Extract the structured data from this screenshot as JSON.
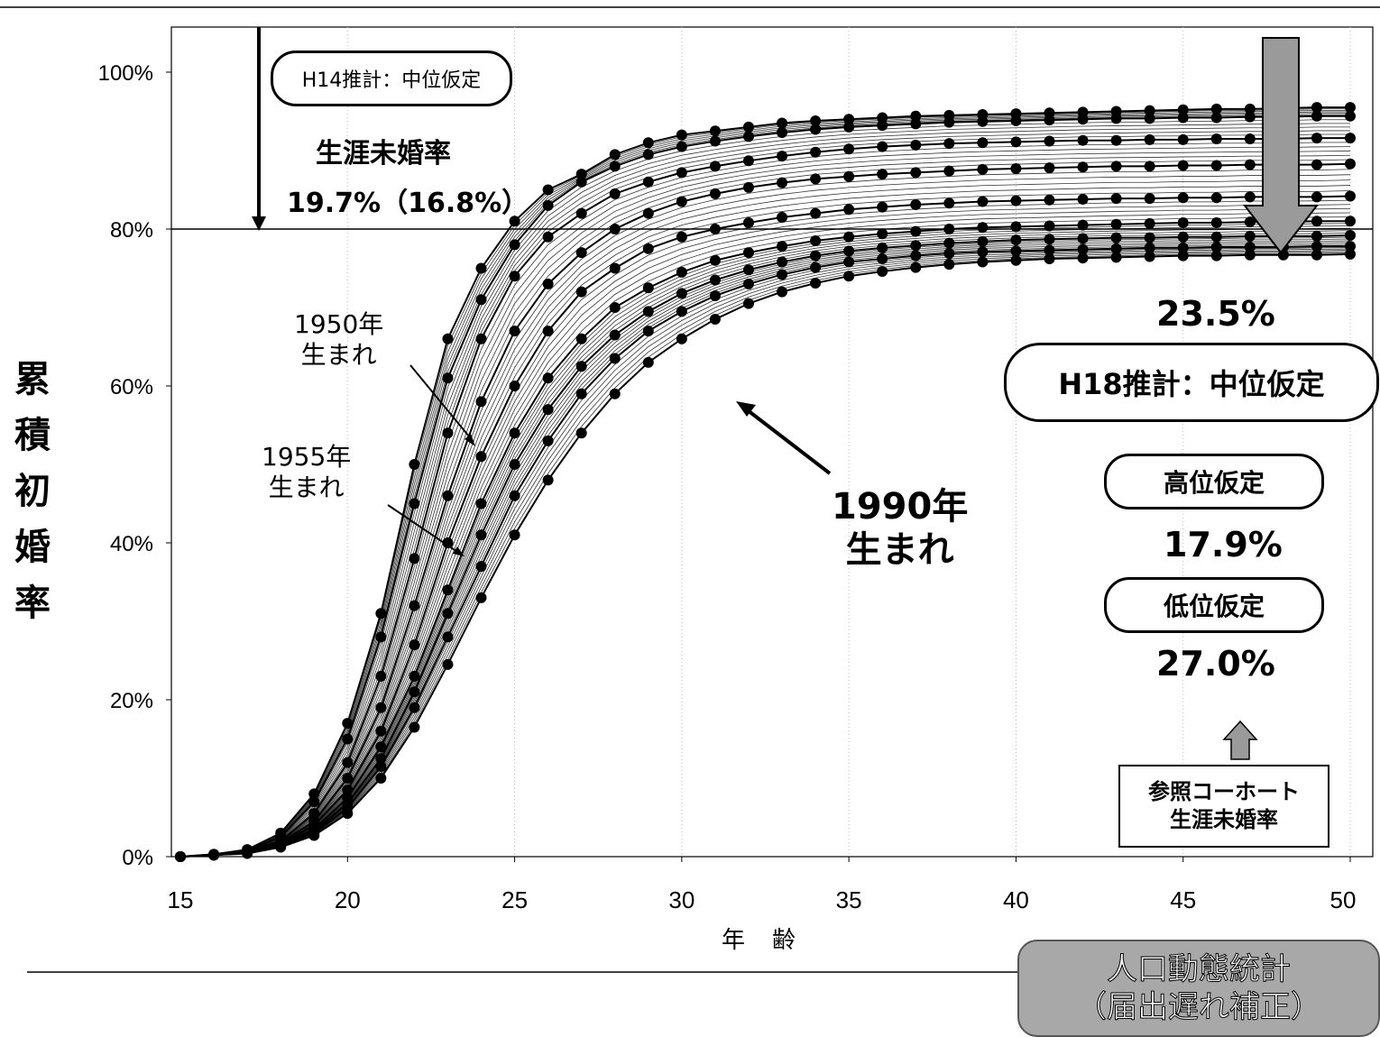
{
  "chart_data": {
    "type": "line",
    "xlabel": "年　齢",
    "ylabel": "累積初婚率",
    "xlim": [
      15,
      50
    ],
    "ylim": [
      0,
      1.0
    ],
    "x_ticks": [
      15,
      20,
      25,
      30,
      35,
      40,
      45,
      50
    ],
    "x_tick_labels": [
      "15",
      "20",
      "25",
      "30",
      "35",
      "40",
      "45",
      "50"
    ],
    "y_ticks": [
      0,
      0.2,
      0.4,
      0.6,
      0.8,
      1.0
    ],
    "y_tick_labels": [
      "0%",
      "20%",
      "40%",
      "60%",
      "80%",
      "100%"
    ],
    "reference_line_y": 0.8,
    "x": [
      15,
      16,
      17,
      18,
      19,
      20,
      21,
      22,
      23,
      24,
      25,
      26,
      27,
      28,
      29,
      30,
      31,
      32,
      33,
      34,
      35,
      36,
      37,
      38,
      39,
      40,
      41,
      42,
      43,
      44,
      45,
      46,
      47,
      48,
      49,
      50
    ],
    "series": [
      {
        "values": [
          0,
          0.003,
          0.009,
          0.03,
          0.08,
          0.17,
          0.31,
          0.5,
          0.66,
          0.75,
          0.81,
          0.85,
          0.87,
          0.895,
          0.91,
          0.92,
          0.925,
          0.93,
          0.935,
          0.938,
          0.94,
          0.942,
          0.944,
          0.945,
          0.946,
          0.947,
          0.948,
          0.949,
          0.95,
          0.951,
          0.952,
          0.953,
          0.953,
          0.954,
          0.955,
          0.955
        ]
      },
      {
        "values": [
          0,
          0.003,
          0.008,
          0.025,
          0.07,
          0.15,
          0.28,
          0.45,
          0.61,
          0.71,
          0.78,
          0.83,
          0.86,
          0.88,
          0.895,
          0.905,
          0.912,
          0.918,
          0.923,
          0.927,
          0.93,
          0.932,
          0.934,
          0.936,
          0.937,
          0.938,
          0.939,
          0.94,
          0.941,
          0.941,
          0.942,
          0.942,
          0.943,
          0.943,
          0.944,
          0.944
        ]
      },
      {
        "values": [
          0,
          0.002,
          0.007,
          0.02,
          0.055,
          0.12,
          0.23,
          0.38,
          0.54,
          0.66,
          0.74,
          0.79,
          0.82,
          0.845,
          0.86,
          0.872,
          0.88,
          0.887,
          0.893,
          0.898,
          0.902,
          0.905,
          0.907,
          0.909,
          0.91,
          0.911,
          0.912,
          0.913,
          0.913,
          0.914,
          0.914,
          0.915,
          0.915,
          0.915,
          0.916,
          0.916
        ]
      },
      {
        "values": [
          0,
          0.002,
          0.006,
          0.018,
          0.045,
          0.1,
          0.19,
          0.32,
          0.46,
          0.58,
          0.67,
          0.73,
          0.77,
          0.8,
          0.82,
          0.835,
          0.845,
          0.853,
          0.859,
          0.864,
          0.867,
          0.87,
          0.872,
          0.874,
          0.876,
          0.877,
          0.878,
          0.879,
          0.88,
          0.88,
          0.881,
          0.881,
          0.882,
          0.882,
          0.882,
          0.883
        ]
      },
      {
        "values": [
          0,
          0.002,
          0.006,
          0.016,
          0.04,
          0.085,
          0.16,
          0.27,
          0.4,
          0.51,
          0.6,
          0.67,
          0.72,
          0.75,
          0.775,
          0.79,
          0.8,
          0.808,
          0.815,
          0.82,
          0.825,
          0.828,
          0.831,
          0.833,
          0.835,
          0.836,
          0.837,
          0.838,
          0.839,
          0.839,
          0.84,
          0.84,
          0.841,
          0.841,
          0.841,
          0.842
        ]
      },
      {
        "values": [
          0,
          0.002,
          0.005,
          0.015,
          0.035,
          0.075,
          0.14,
          0.23,
          0.34,
          0.45,
          0.54,
          0.61,
          0.66,
          0.7,
          0.725,
          0.745,
          0.76,
          0.77,
          0.778,
          0.785,
          0.79,
          0.794,
          0.797,
          0.8,
          0.802,
          0.803,
          0.804,
          0.805,
          0.806,
          0.807,
          0.808,
          0.808,
          0.809,
          0.809,
          0.81,
          0.81
        ]
      },
      {
        "values": [
          0,
          0.002,
          0.005,
          0.014,
          0.032,
          0.068,
          0.125,
          0.21,
          0.31,
          0.41,
          0.5,
          0.57,
          0.625,
          0.665,
          0.695,
          0.718,
          0.735,
          0.748,
          0.758,
          0.766,
          0.772,
          0.776,
          0.779,
          0.782,
          0.784,
          0.786,
          0.787,
          0.788,
          0.789,
          0.789,
          0.79,
          0.79,
          0.791,
          0.791,
          0.791,
          0.792
        ]
      },
      {
        "values": [
          0,
          0.002,
          0.005,
          0.013,
          0.03,
          0.062,
          0.115,
          0.19,
          0.28,
          0.37,
          0.46,
          0.53,
          0.59,
          0.635,
          0.67,
          0.695,
          0.715,
          0.73,
          0.742,
          0.751,
          0.758,
          0.762,
          0.766,
          0.769,
          0.771,
          0.772,
          0.773,
          0.774,
          0.775,
          0.776,
          0.776,
          0.777,
          0.777,
          0.777,
          0.778,
          0.778
        ]
      },
      {
        "values": [
          0,
          0.002,
          0.004,
          0.012,
          0.027,
          0.055,
          0.1,
          0.165,
          0.245,
          0.33,
          0.41,
          0.48,
          0.54,
          0.59,
          0.63,
          0.66,
          0.685,
          0.705,
          0.72,
          0.731,
          0.74,
          0.746,
          0.751,
          0.755,
          0.758,
          0.76,
          0.762,
          0.763,
          0.764,
          0.765,
          0.766,
          0.766,
          0.767,
          0.767,
          0.767,
          0.768
        ]
      }
    ]
  },
  "annotations": {
    "h14_box": "H14推計：中位仮定",
    "h14_title": "生涯未婚率",
    "h14_value": "19.7%（16.8%）",
    "label_1950": "1950年\n生まれ",
    "label_1955": "1955年\n生まれ",
    "label_1990": "1990年\n生まれ",
    "h18_value": "23.5%",
    "h18_box": "H18推計：中位仮定",
    "high_box": "高位仮定",
    "high_value": "17.9%",
    "low_box": "低位仮定",
    "low_value": "27.0%",
    "ref_box": "参照コーホート\n生涯未婚率",
    "source_box": "人口動態統計\n（届出遅れ補正）"
  },
  "colors": {
    "line": "#000000",
    "fill_gray": "#9a9a9a",
    "band_gray": "#d0d0d0"
  }
}
